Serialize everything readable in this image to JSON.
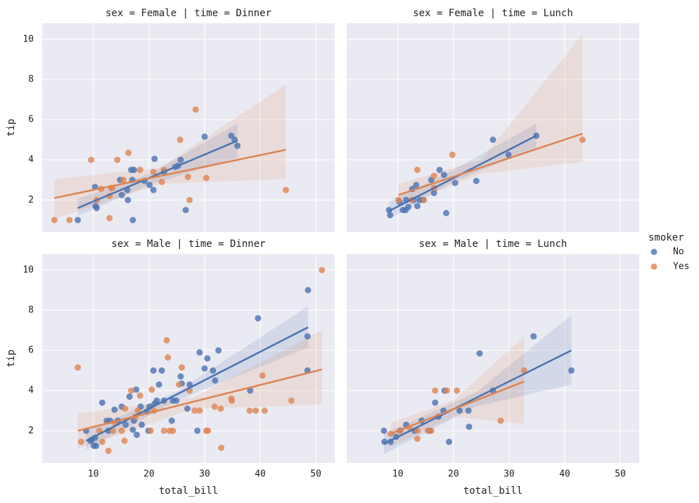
{
  "chart_data": [
    {
      "type": "scatter",
      "title": "sex = Female | time = Dinner",
      "ylabel": "tip",
      "xlim": [
        0.8,
        53.4
      ],
      "ylim": [
        0.4,
        10.8
      ],
      "xticks": [
        10,
        20,
        30,
        40,
        50
      ],
      "yticks": [
        2,
        4,
        6,
        8,
        10
      ],
      "grid": true,
      "series": [
        {
          "color": "#4c72b0",
          "x": [
            7.2,
            10.3,
            10.4,
            10.6,
            14.8,
            15.1,
            16.1,
            16.2,
            16.8,
            17.3,
            17.1,
            17.0,
            19.2,
            20.1,
            20.8,
            21.0,
            22.7,
            24.7,
            25.2,
            25.7,
            26.6,
            30.0,
            34.8,
            35.4,
            35.9
          ],
          "values": [
            1.0,
            2.65,
            1.7,
            1.6,
            3.0,
            2.25,
            2.5,
            2.0,
            3.5,
            3.5,
            1.0,
            3.0,
            2.95,
            2.75,
            2.5,
            4.05,
            3.4,
            3.65,
            3.7,
            4.0,
            1.5,
            5.15,
            5.2,
            5.0,
            4.7
          ],
          "fit": {
            "x": [
              7.2,
              35.9
            ],
            "y": [
              1.6,
              4.95
            ]
          },
          "ci": {
            "x": [
              7.2,
              20,
              35.9
            ],
            "lower": [
              1.2,
              2.75,
              4.1
            ],
            "upper": [
              2.05,
              3.3,
              5.8
            ]
          }
        },
        {
          "color": "#dd8452",
          "x": [
            3.0,
            5.7,
            9.6,
            10.6,
            11.4,
            12.9,
            13.2,
            13.4,
            14.3,
            15.4,
            16.3,
            12.9,
            18.4,
            20.8,
            22.3,
            22.7,
            25.6,
            27.0,
            27.3,
            28.4,
            30.3,
            44.6
          ],
          "values": [
            1.0,
            1.0,
            4.0,
            2.0,
            2.55,
            2.2,
            2.6,
            2.6,
            4.0,
            3.0,
            4.35,
            1.1,
            3.5,
            3.4,
            2.9,
            3.5,
            5.0,
            3.15,
            2.0,
            6.5,
            3.1,
            2.5
          ],
          "fit": {
            "x": [
              3.0,
              44.6
            ],
            "y": [
              2.1,
              4.5
            ]
          },
          "ci": {
            "x": [
              3.0,
              22,
              44.6
            ],
            "lower": [
              1.05,
              2.8,
              3.05
            ],
            "upper": [
              3.05,
              3.6,
              7.75
            ]
          }
        }
      ]
    },
    {
      "type": "scatter",
      "title": "sex = Female | time = Lunch",
      "xlim": [
        0.8,
        53.4
      ],
      "ylim": [
        0.4,
        10.8
      ],
      "xticks": [
        10,
        20,
        30,
        40,
        50
      ],
      "yticks": [
        2,
        4,
        6,
        8,
        10
      ],
      "grid": true,
      "series": [
        {
          "color": "#4c72b0",
          "x": [
            8.4,
            8.6,
            10.3,
            10.9,
            11.4,
            11.5,
            11.9,
            12.8,
            12.6,
            13.3,
            13.5,
            13.9,
            14.5,
            16.0,
            16.5,
            17.5,
            18.3,
            18.7,
            20.3,
            24.1,
            27.1,
            29.9,
            34.9
          ],
          "values": [
            1.5,
            1.25,
            1.9,
            1.5,
            1.5,
            2.0,
            1.65,
            2.0,
            2.55,
            2.75,
            1.7,
            2.0,
            2.0,
            3.0,
            2.35,
            3.5,
            3.25,
            1.35,
            2.85,
            2.95,
            5.0,
            4.25,
            5.2
          ],
          "fit": {
            "x": [
              8.4,
              34.9
            ],
            "y": [
              1.45,
              5.2
            ]
          },
          "ci": {
            "x": [
              8.4,
              20,
              34.9
            ],
            "lower": [
              1.05,
              2.9,
              4.6
            ],
            "upper": [
              1.9,
              3.5,
              5.8
            ]
          }
        },
        {
          "color": "#dd8452",
          "x": [
            10.1,
            13.5,
            14.7,
            16.5,
            16.5,
            19.8,
            43.2,
            12.5
          ],
          "values": [
            2.0,
            3.5,
            2.0,
            2.6,
            3.2,
            4.25,
            5.0,
            2.0
          ],
          "fit": {
            "x": [
              10.1,
              43.2
            ],
            "y": [
              2.25,
              5.3
            ]
          },
          "ci": {
            "x": [
              10.1,
              25,
              43.2
            ],
            "lower": [
              1.7,
              3.3,
              3.9
            ],
            "upper": [
              2.8,
              4.0,
              10.25
            ]
          }
        }
      ]
    },
    {
      "type": "scatter",
      "title": "sex = Male | time = Dinner",
      "ylabel": "tip",
      "xlabel": "total_bill",
      "xlim": [
        0.8,
        53.4
      ],
      "ylim": [
        0.4,
        10.8
      ],
      "xticks": [
        10,
        20,
        30,
        40,
        50
      ],
      "yticks": [
        2,
        4,
        6,
        8,
        10
      ],
      "grid": true,
      "series": [
        {
          "color": "#4c72b0",
          "x": [
            8.7,
            9.5,
            9.7,
            10.1,
            10.5,
            10.3,
            11.6,
            12.4,
            12.7,
            13.0,
            13.8,
            14.4,
            15.1,
            15.8,
            16.5,
            17.1,
            17.3,
            17.7,
            17.8,
            18.5,
            18.7,
            19.6,
            19.9,
            20.1,
            20.8,
            21.0,
            21.4,
            21.8,
            22.3,
            22.7,
            24.1,
            24.3,
            24.9,
            25.7,
            25.9,
            26.9,
            27.3,
            28.7,
            29.1,
            30.0,
            30.5,
            31.5,
            31.9,
            32.5,
            38.2,
            39.6,
            48.5,
            48.5,
            48.6
          ],
          "values": [
            2.0,
            1.5,
            1.55,
            1.25,
            1.25,
            1.65,
            3.4,
            2.5,
            2.0,
            2.5,
            3.05,
            2.5,
            3.2,
            2.3,
            3.7,
            2.05,
            2.5,
            4.05,
            1.8,
            3.2,
            2.3,
            2.95,
            2.0,
            3.2,
            5.0,
            3.35,
            3.5,
            4.3,
            5.0,
            3.5,
            2.5,
            3.5,
            3.5,
            4.7,
            4.35,
            3.1,
            4.3,
            2.0,
            5.9,
            5.1,
            5.6,
            5.0,
            4.5,
            6.0,
            4.0,
            7.6,
            5.0,
            6.7,
            9.0
          ],
          "fit": {
            "x": [
              8.7,
              48.6
            ],
            "y": [
              1.5,
              7.15
            ]
          },
          "ci": {
            "x": [
              8.7,
              25,
              48.6
            ],
            "lower": [
              1.05,
              3.5,
              6.15
            ],
            "upper": [
              2.0,
              3.95,
              8.2
            ]
          }
        },
        {
          "color": "#dd8452",
          "x": [
            7.2,
            7.8,
            11.1,
            11.6,
            12.7,
            13.5,
            13.9,
            15.1,
            15.6,
            15.7,
            16.8,
            17.5,
            18.0,
            18.4,
            20.3,
            20.5,
            20.9,
            22.7,
            23.2,
            23.4,
            23.7,
            24.3,
            25.4,
            25.9,
            27.3,
            28.2,
            29.1,
            30.3,
            30.6,
            31.8,
            32.9,
            33.0,
            34.8,
            34.9,
            38.1,
            39.2,
            40.4,
            40.8,
            45.6,
            51.1
          ],
          "values": [
            5.15,
            1.45,
            2.0,
            1.45,
            1.0,
            2.0,
            2.4,
            2.0,
            1.5,
            3.1,
            4.0,
            2.7,
            3.0,
            3.75,
            2.0,
            4.05,
            3.0,
            2.0,
            6.5,
            5.65,
            2.0,
            2.0,
            4.3,
            5.15,
            4.0,
            3.0,
            3.0,
            2.0,
            2.0,
            3.2,
            3.1,
            1.15,
            3.6,
            3.5,
            3.0,
            3.0,
            4.75,
            3.0,
            3.5,
            10.0
          ],
          "fit": {
            "x": [
              7.2,
              51.1
            ],
            "y": [
              2.0,
              5.05
            ]
          },
          "ci": {
            "x": [
              7.2,
              28,
              51.1
            ],
            "lower": [
              1.1,
              3.1,
              3.3
            ],
            "upper": [
              2.85,
              3.65,
              7.0
            ]
          }
        }
      ]
    },
    {
      "type": "scatter",
      "title": "sex = Male | time = Lunch",
      "xlabel": "total_bill",
      "xlim": [
        0.8,
        53.4
      ],
      "ylim": [
        0.4,
        10.8
      ],
      "xticks": [
        10,
        20,
        30,
        40,
        50
      ],
      "yticks": [
        2,
        4,
        6,
        8,
        10
      ],
      "grid": true,
      "series": [
        {
          "color": "#4c72b0",
          "x": [
            7.5,
            7.6,
            8.7,
            9.7,
            10.4,
            11.5,
            13.0,
            14.3,
            15.7,
            16.7,
            17.3,
            18.2,
            18.4,
            19.2,
            21.1,
            22.7,
            22.8,
            24.7,
            27.1,
            34.4,
            41.2
          ],
          "values": [
            2.0,
            1.45,
            1.45,
            1.7,
            2.0,
            2.3,
            2.0,
            2.5,
            2.0,
            3.4,
            2.7,
            3.0,
            4.0,
            1.45,
            3.0,
            3.0,
            2.2,
            5.85,
            4.0,
            6.7,
            5.0
          ],
          "fit": {
            "x": [
              7.5,
              41.2
            ],
            "y": [
              1.35,
              6.0
            ]
          },
          "ci": {
            "x": [
              7.5,
              24,
              41.2
            ],
            "lower": [
              0.85,
              3.2,
              4.3
            ],
            "upper": [
              1.85,
              3.9,
              7.75
            ]
          }
        },
        {
          "color": "#dd8452",
          "x": [
            8.7,
            10.4,
            13.5,
            13.5,
            15.4,
            16.0,
            16.7,
            18.8,
            20.6,
            28.5,
            32.7,
            12.1
          ],
          "values": [
            1.85,
            2.0,
            2.0,
            1.6,
            2.0,
            2.0,
            4.0,
            4.0,
            4.0,
            2.5,
            5.0,
            2.15
          ],
          "fit": {
            "x": [
              8.7,
              32.7
            ],
            "y": [
              1.85,
              4.45
            ]
          },
          "ci": {
            "x": [
              8.7,
              20,
              32.7
            ],
            "lower": [
              1.2,
              2.7,
              2.35
            ],
            "upper": [
              2.4,
              3.5,
              6.7
            ]
          }
        }
      ]
    }
  ],
  "legend": {
    "title": "smoker",
    "entries": [
      {
        "name": "No",
        "color": "#4c72b0"
      },
      {
        "name": "Yes",
        "color": "#dd8452"
      }
    ]
  }
}
